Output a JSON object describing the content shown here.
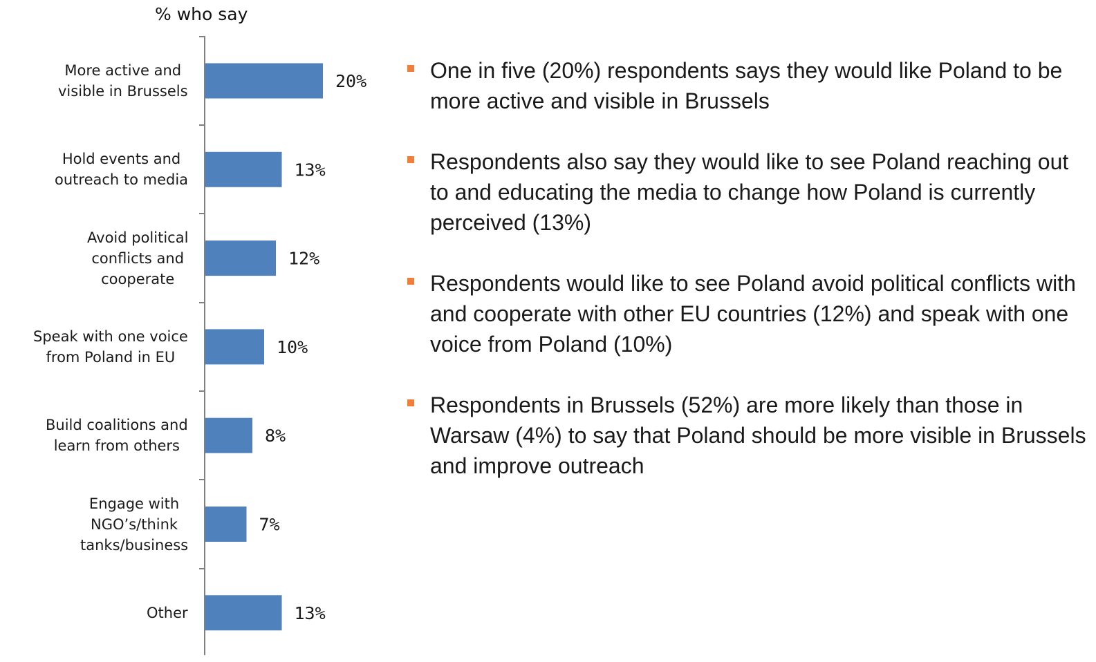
{
  "chart_data": {
    "type": "bar",
    "orientation": "horizontal",
    "title": "% who say",
    "categories": [
      "More active and\nvisible in Brussels",
      "Hold events and\noutreach to media",
      "Avoid political\nconflicts and\ncooperate",
      "Speak with one voice\nfrom Poland in EU",
      "Build coalitions and\nlearn from others",
      "Engage with\nNGO’s/think\ntanks/business",
      "Other"
    ],
    "values": [
      20,
      13,
      12,
      10,
      8,
      7,
      13
    ],
    "data_labels": [
      "20%",
      "13%",
      "12%",
      "10%",
      "8%",
      "7%",
      "13%"
    ],
    "value_axis_range": [
      0,
      40
    ],
    "grid": false,
    "legend": "none",
    "bar_color": "#4f81bd",
    "axis_color": "#7f7f7f"
  },
  "bullets": {
    "marker_color": "#f07f3c",
    "items": [
      "One in five (20%) respondents says they would like Poland to be more active and visible in Brussels",
      "Respondents also say they would like to see Poland reaching out to and educating the media to change how Poland is currently perceived (13%)",
      "Respondents would like to see Poland avoid political conflicts with and cooperate with other EU countries (12%) and speak with one voice from Poland (10%)",
      "Respondents in Brussels (52%) are more likely than those in Warsaw (4%) to say that Poland should be more visible in Brussels and improve outreach"
    ]
  }
}
